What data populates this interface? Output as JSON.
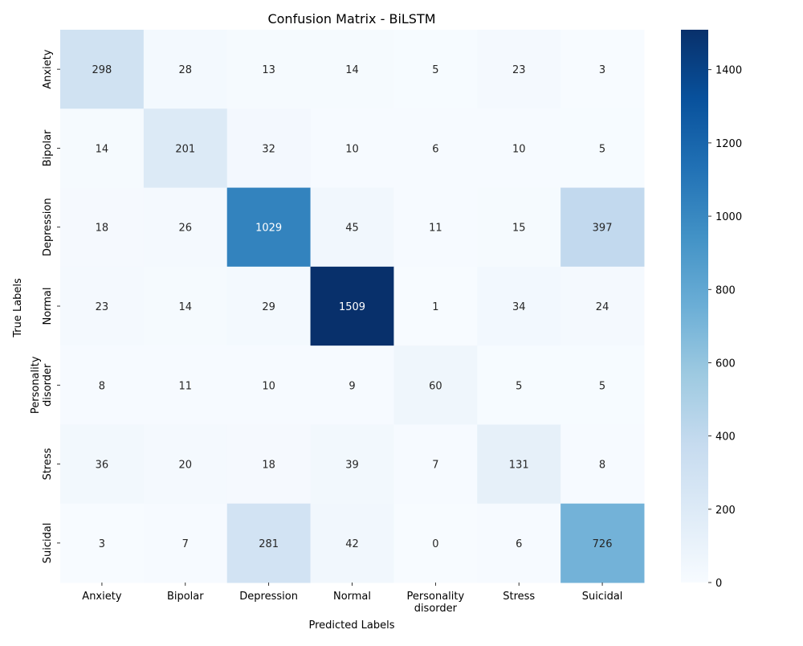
{
  "chart_data": {
    "type": "heatmap",
    "title": "Confusion Matrix - BiLSTM",
    "xlabel": "Predicted Labels",
    "ylabel": "True Labels",
    "x_categories": [
      "Anxiety",
      "Bipolar",
      "Depression",
      "Normal",
      "Personality\ndisorder",
      "Stress",
      "Suicidal"
    ],
    "y_categories": [
      "Anxiety",
      "Bipolar",
      "Depression",
      "Normal",
      "Personality\ndisorder",
      "Stress",
      "Suicidal"
    ],
    "values": [
      [
        298,
        28,
        13,
        14,
        5,
        23,
        3
      ],
      [
        14,
        201,
        32,
        10,
        6,
        10,
        5
      ],
      [
        18,
        26,
        1029,
        45,
        11,
        15,
        397
      ],
      [
        23,
        14,
        29,
        1509,
        1,
        34,
        24
      ],
      [
        8,
        11,
        10,
        9,
        60,
        5,
        5
      ],
      [
        36,
        20,
        18,
        39,
        7,
        131,
        8
      ],
      [
        3,
        7,
        281,
        42,
        0,
        6,
        726
      ]
    ],
    "colormap": "Blues",
    "vmin": 0,
    "vmax": 1509,
    "colorbar_ticks": [
      0,
      200,
      400,
      600,
      800,
      1000,
      1200,
      1400
    ]
  }
}
